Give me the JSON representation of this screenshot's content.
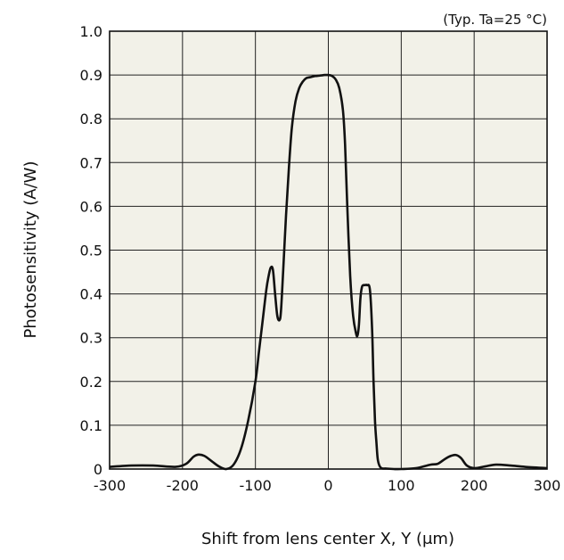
{
  "chart_data": {
    "type": "line",
    "annotation": "(Typ. Ta=25 °C)",
    "xlabel": "Shift from lens center X, Y (μm)",
    "ylabel": "Photosensitivity (A/W)",
    "xlim": [
      -300,
      300
    ],
    "ylim": [
      0,
      1.0
    ],
    "xticks": [
      -300,
      -200,
      -100,
      0,
      100,
      200,
      300
    ],
    "xtick_labels": [
      "-300",
      "-200",
      "-100",
      "0",
      "100",
      "200",
      "300"
    ],
    "yticks": [
      0,
      0.1,
      0.2,
      0.3,
      0.4,
      0.5,
      0.6,
      0.7,
      0.8,
      0.9,
      1.0
    ],
    "ytick_labels": [
      "0",
      "0.1",
      "0.2",
      "0.3",
      "0.4",
      "0.5",
      "0.6",
      "0.7",
      "0.8",
      "0.9",
      "1.0"
    ],
    "grid": true,
    "colors": {
      "plot_background": "#f2f1e8",
      "line": "#111111",
      "grid": "#222222"
    },
    "series": [
      {
        "x": [
          -300,
          -270,
          -240,
          -210,
          -195,
          -185,
          -178,
          -170,
          -160,
          -150,
          -140,
          -130,
          -120,
          -110,
          -100,
          -95,
          -90,
          -85,
          -82,
          -79,
          -76,
          -73,
          -70,
          -67,
          -65,
          -62,
          -58,
          -54,
          -50,
          -45,
          -40,
          -35,
          -30,
          -25,
          -20,
          -15,
          -10,
          -5,
          0,
          5,
          10,
          15,
          20,
          23,
          26,
          30,
          34,
          38,
          40,
          42,
          44,
          46,
          48,
          50,
          53,
          57,
          60,
          62,
          64,
          66,
          68,
          72,
          80,
          90,
          100,
          120,
          140,
          150,
          160,
          168,
          175,
          182,
          190,
          200,
          215,
          230,
          250,
          270,
          300
        ],
        "y": [
          0.005,
          0.008,
          0.008,
          0.005,
          0.012,
          0.028,
          0.033,
          0.03,
          0.018,
          0.006,
          0.0,
          0.01,
          0.045,
          0.11,
          0.2,
          0.27,
          0.34,
          0.41,
          0.44,
          0.46,
          0.455,
          0.4,
          0.35,
          0.34,
          0.36,
          0.45,
          0.58,
          0.69,
          0.78,
          0.84,
          0.87,
          0.885,
          0.893,
          0.895,
          0.897,
          0.898,
          0.899,
          0.9,
          0.9,
          0.898,
          0.89,
          0.87,
          0.82,
          0.74,
          0.6,
          0.44,
          0.35,
          0.31,
          0.305,
          0.33,
          0.39,
          0.415,
          0.42,
          0.42,
          0.42,
          0.41,
          0.32,
          0.2,
          0.11,
          0.06,
          0.02,
          0.003,
          0.001,
          0.0,
          0.0,
          0.002,
          0.01,
          0.012,
          0.023,
          0.03,
          0.032,
          0.025,
          0.008,
          0.002,
          0.006,
          0.01,
          0.008,
          0.005,
          0.002
        ]
      }
    ]
  }
}
